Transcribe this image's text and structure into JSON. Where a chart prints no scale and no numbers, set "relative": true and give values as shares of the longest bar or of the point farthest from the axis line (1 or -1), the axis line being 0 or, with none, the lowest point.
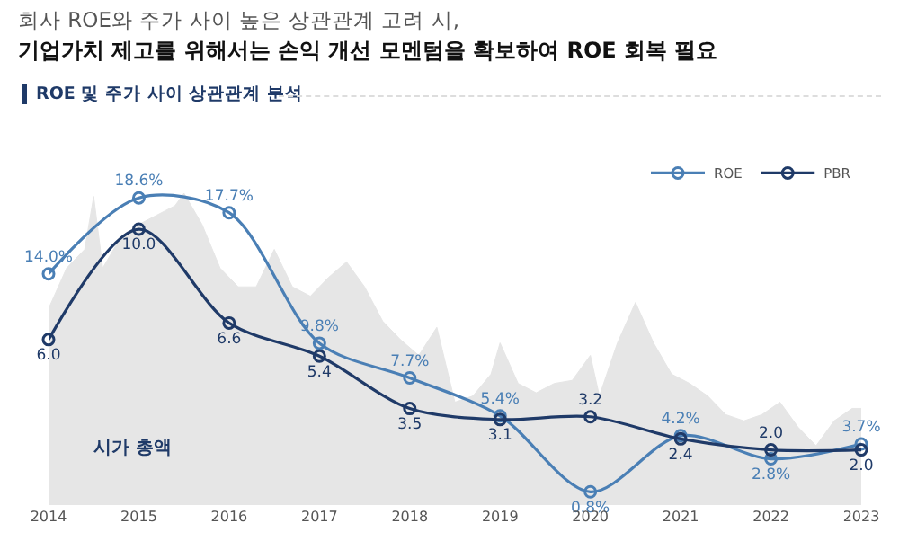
{
  "chart_data": [
    {
      "type": "line",
      "title": "회사 ROE와 주가 사이 높은 상관관계 고려 시,",
      "subtitle": "기업가치 제고를 위해서는 손익 개선 모멘텀을 확보하여 ROE 회복 필요",
      "annotations": [
        "ROE 및 주가 사이 상관관계 분석"
      ],
      "x": [
        2014,
        2015,
        2016,
        2017,
        2018,
        2019,
        2020,
        2021,
        2022,
        2023
      ],
      "xlim": [
        2014,
        2023
      ],
      "xticks": [
        2014,
        2015,
        2016,
        2017,
        2018,
        2019,
        2020,
        2021,
        2022,
        2023
      ],
      "tick_labels": "x",
      "legend": "top right",
      "marker": "circle",
      "line_style": "solid",
      "grid": false,
      "series": [
        {
          "name": "ROE",
          "color": "#4a7fb5",
          "values": [
            14.0,
            18.6,
            17.7,
            9.8,
            7.7,
            5.4,
            0.8,
            4.2,
            2.8,
            3.7
          ],
          "value_labels": [
            "14.0%",
            "18.6%",
            "17.7%",
            "9.8%",
            "7.7%",
            "5.4%",
            "0.8%",
            "4.2%",
            "2.8%",
            "3.7%"
          ]
        },
        {
          "name": "PBR",
          "color": "#1f3a68",
          "axis": "y2",
          "values": [
            6.0,
            10.0,
            6.6,
            5.4,
            3.5,
            3.1,
            3.2,
            2.4,
            2.0,
            2.0
          ],
          "value_labels": [
            "6.0",
            "10.0",
            "6.6",
            "5.4",
            "3.5",
            "3.1",
            "3.2",
            "2.4",
            "2.0",
            "2.0"
          ]
        }
      ]
    },
    {
      "type": "area",
      "relative": true,
      "xlim": [
        2014,
        2023
      ],
      "tick_labels": false,
      "x": [
        2014.0,
        2014.2,
        2014.4,
        2014.5,
        2014.6,
        2014.8,
        2015.0,
        2015.2,
        2015.4,
        2015.5,
        2015.7,
        2015.9,
        2016.1,
        2016.3,
        2016.5,
        2016.7,
        2016.9,
        2017.1,
        2017.3,
        2017.5,
        2017.7,
        2017.9,
        2018.1,
        2018.3,
        2018.5,
        2018.7,
        2018.9,
        2019.0,
        2019.2,
        2019.4,
        2019.6,
        2019.8,
        2020.0,
        2020.1,
        2020.3,
        2020.5,
        2020.7,
        2020.9,
        2021.1,
        2021.3,
        2021.5,
        2021.7,
        2021.9,
        2022.1,
        2022.3,
        2022.5,
        2022.7,
        2022.9,
        2023.0
      ],
      "series": [
        {
          "name": "시가 총액",
          "color": "#e6e6e6",
          "values": [
            0.63,
            0.76,
            0.82,
            0.99,
            0.76,
            0.86,
            0.9,
            0.93,
            0.96,
            1,
            0.9,
            0.76,
            0.7,
            0.7,
            0.82,
            0.7,
            0.67,
            0.73,
            0.78,
            0.7,
            0.59,
            0.53,
            0.48,
            0.57,
            0.33,
            0.35,
            0.42,
            0.52,
            0.39,
            0.36,
            0.39,
            0.4,
            0.48,
            0.35,
            0.52,
            0.65,
            0.52,
            0.42,
            0.39,
            0.35,
            0.29,
            0.27,
            0.29,
            0.33,
            0.25,
            0.19,
            0.27,
            0.31,
            0.31
          ]
        }
      ]
    }
  ]
}
